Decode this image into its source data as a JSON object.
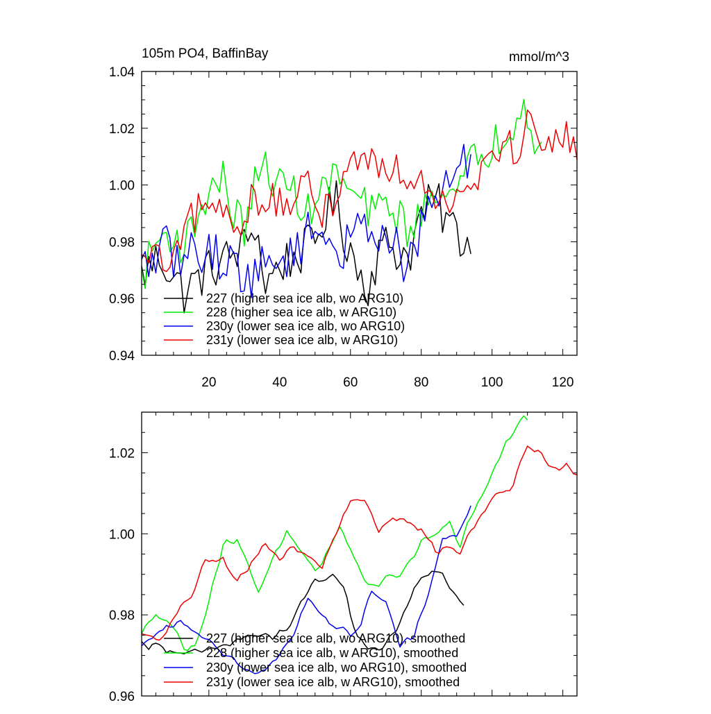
{
  "colors": {
    "s227": "#000000",
    "s228": "#00ee00",
    "s230": "#0000ee",
    "s231": "#ee0000"
  },
  "chart_data": [
    {
      "type": "line",
      "title": "105m PO4, BaffinBay",
      "units": "mmol/m^3",
      "xlim": [
        1,
        124
      ],
      "ylim": [
        0.94,
        1.04
      ],
      "x_ticks": [
        20,
        40,
        60,
        80,
        100,
        120
      ],
      "y_ticks": [
        0.94,
        0.96,
        0.98,
        1.0,
        1.02,
        1.04
      ],
      "x_tick_labels": [
        "20",
        "40",
        "60",
        "80",
        "100",
        "120"
      ],
      "y_tick_labels": [
        "0.94",
        "0.96",
        "0.98",
        "1.00",
        "1.02",
        "1.04"
      ],
      "legend": {
        "position": "lower-left"
      },
      "series": [
        {
          "name": "227 (higher sea ice alb, wo ARG10)",
          "color_key": "s227",
          "start": 1,
          "end": 94,
          "anchors": [
            [
              1,
              0.968
            ],
            [
              6,
              0.975
            ],
            [
              10,
              0.968
            ],
            [
              13,
              0.962
            ],
            [
              16,
              0.966
            ],
            [
              20,
              0.97
            ],
            [
              25,
              0.974
            ],
            [
              30,
              0.978
            ],
            [
              33,
              0.987
            ],
            [
              36,
              0.965
            ],
            [
              40,
              0.972
            ],
            [
              45,
              0.975
            ],
            [
              50,
              0.98
            ],
            [
              53,
              0.99
            ],
            [
              56,
              0.994
            ],
            [
              58,
              0.983
            ],
            [
              60,
              0.978
            ],
            [
              62,
              0.97
            ],
            [
              65,
              0.965
            ],
            [
              68,
              0.976
            ],
            [
              71,
              0.98
            ],
            [
              74,
              0.975
            ],
            [
              77,
              0.977
            ],
            [
              80,
              0.99
            ],
            [
              84,
              0.995
            ],
            [
              86,
              0.99
            ],
            [
              89,
              0.985
            ],
            [
              92,
              0.98
            ],
            [
              94,
              0.98
            ]
          ],
          "noise": 0.008
        },
        {
          "name": "228 (higher sea ice alb, w ARG10)",
          "color_key": "s228",
          "start": 1,
          "end": 114,
          "anchors": [
            [
              1,
              0.967
            ],
            [
              5,
              0.98
            ],
            [
              9,
              0.983
            ],
            [
              13,
              0.978
            ],
            [
              16,
              0.987
            ],
            [
              20,
              0.998
            ],
            [
              24,
              1.002
            ],
            [
              27,
              0.99
            ],
            [
              30,
              0.985
            ],
            [
              33,
              1.0
            ],
            [
              36,
              1.006
            ],
            [
              40,
              1.0
            ],
            [
              44,
              0.998
            ],
            [
              48,
              0.99
            ],
            [
              52,
              0.998
            ],
            [
              56,
              1.004
            ],
            [
              60,
              0.997
            ],
            [
              63,
              0.994
            ],
            [
              66,
              0.99
            ],
            [
              70,
              0.993
            ],
            [
              73,
              0.99
            ],
            [
              76,
              0.985
            ],
            [
              80,
              0.988
            ],
            [
              84,
              1.0
            ],
            [
              87,
              1.0
            ],
            [
              90,
              0.995
            ],
            [
              94,
              1.008
            ],
            [
              97,
              1.01
            ],
            [
              100,
              1.014
            ],
            [
              103,
              1.018
            ],
            [
              106,
              1.022
            ],
            [
              108,
              1.03
            ],
            [
              110,
              1.027
            ],
            [
              112,
              1.018
            ],
            [
              114,
              1.012
            ]
          ],
          "noise": 0.007
        },
        {
          "name": "230y (lower sea ice alb, wo ARG10)",
          "color_key": "s230",
          "start": 1,
          "end": 94,
          "anchors": [
            [
              1,
              0.97
            ],
            [
              5,
              0.975
            ],
            [
              8,
              0.978
            ],
            [
              12,
              0.972
            ],
            [
              16,
              0.978
            ],
            [
              20,
              0.976
            ],
            [
              24,
              0.974
            ],
            [
              28,
              0.972
            ],
            [
              31,
              0.966
            ],
            [
              34,
              0.97
            ],
            [
              38,
              0.972
            ],
            [
              42,
              0.975
            ],
            [
              46,
              0.98
            ],
            [
              50,
              0.985
            ],
            [
              54,
              0.982
            ],
            [
              57,
              0.975
            ],
            [
              60,
              0.98
            ],
            [
              63,
              0.985
            ],
            [
              67,
              0.986
            ],
            [
              70,
              0.982
            ],
            [
              73,
              0.978
            ],
            [
              76,
              0.97
            ],
            [
              79,
              0.98
            ],
            [
              82,
              0.99
            ],
            [
              85,
              0.998
            ],
            [
              88,
              1.002
            ],
            [
              91,
              1.005
            ],
            [
              94,
              1.01
            ]
          ],
          "noise": 0.008
        },
        {
          "name": "231y (lower sea ice alb, w ARG10)",
          "color_key": "s231",
          "start": 1,
          "end": 124,
          "anchors": [
            [
              1,
              0.972
            ],
            [
              5,
              0.975
            ],
            [
              9,
              0.97
            ],
            [
              13,
              0.98
            ],
            [
              16,
              0.99
            ],
            [
              20,
              0.993
            ],
            [
              24,
              0.99
            ],
            [
              28,
              0.985
            ],
            [
              32,
              0.995
            ],
            [
              36,
              0.996
            ],
            [
              40,
              0.992
            ],
            [
              44,
              0.995
            ],
            [
              48,
              0.998
            ],
            [
              52,
              0.99
            ],
            [
              56,
              0.998
            ],
            [
              60,
              1.008
            ],
            [
              64,
              1.01
            ],
            [
              68,
              1.008
            ],
            [
              72,
              1.006
            ],
            [
              76,
              1.004
            ],
            [
              80,
              1.003
            ],
            [
              84,
              0.998
            ],
            [
              88,
              0.995
            ],
            [
              92,
              1.0
            ],
            [
              96,
              1.005
            ],
            [
              100,
              1.012
            ],
            [
              104,
              1.014
            ],
            [
              107,
              1.01
            ],
            [
              110,
              1.022
            ],
            [
              113,
              1.02
            ],
            [
              116,
              1.016
            ],
            [
              119,
              1.018
            ],
            [
              122,
              1.014
            ],
            [
              124,
              1.012
            ]
          ],
          "noise": 0.007
        }
      ]
    },
    {
      "type": "line",
      "xlim": [
        1,
        124
      ],
      "ylim": [
        0.96,
        1.03
      ],
      "x_ticks": [
        20,
        40,
        60,
        80,
        100,
        120
      ],
      "y_ticks": [
        0.96,
        0.98,
        1.0,
        1.02
      ],
      "y_tick_labels": [
        "0.96",
        "0.98",
        "1.00",
        "1.02"
      ],
      "legend": {
        "position": "lower-left"
      },
      "series": [
        {
          "name": "227 (higher sea ice alb, wo ARG10), smoothed",
          "color_key": "s227",
          "start": 1,
          "end": 92,
          "anchors": [
            [
              1,
              0.973
            ],
            [
              8,
              0.972
            ],
            [
              14,
              0.97
            ],
            [
              20,
              0.971
            ],
            [
              26,
              0.973
            ],
            [
              32,
              0.975
            ],
            [
              38,
              0.974
            ],
            [
              43,
              0.978
            ],
            [
              46,
              0.982
            ],
            [
              50,
              0.988
            ],
            [
              55,
              0.99
            ],
            [
              58,
              0.987
            ],
            [
              60,
              0.98
            ],
            [
              62,
              0.975
            ],
            [
              65,
              0.972
            ],
            [
              70,
              0.972
            ],
            [
              74,
              0.978
            ],
            [
              78,
              0.987
            ],
            [
              82,
              0.99
            ],
            [
              86,
              0.99
            ],
            [
              89,
              0.986
            ],
            [
              92,
              0.982
            ]
          ],
          "noise": 0.0015
        },
        {
          "name": "228 (higher sea ice alb, w ARG10), smoothed",
          "color_key": "s228",
          "start": 1,
          "end": 110,
          "anchors": [
            [
              1,
              0.975
            ],
            [
              5,
              0.981
            ],
            [
              9,
              0.978
            ],
            [
              13,
              0.972
            ],
            [
              16,
              0.972
            ],
            [
              20,
              0.984
            ],
            [
              24,
              0.997
            ],
            [
              28,
              0.999
            ],
            [
              31,
              0.992
            ],
            [
              34,
              0.986
            ],
            [
              38,
              0.994
            ],
            [
              42,
              1.0
            ],
            [
              46,
              0.995
            ],
            [
              50,
              0.99
            ],
            [
              54,
              0.997
            ],
            [
              57,
              1.001
            ],
            [
              60,
              0.997
            ],
            [
              63,
              0.99
            ],
            [
              66,
              0.987
            ],
            [
              70,
              0.989
            ],
            [
              74,
              0.99
            ],
            [
              77,
              0.993
            ],
            [
              80,
              0.998
            ],
            [
              84,
              1.0
            ],
            [
              88,
              1.002
            ],
            [
              91,
              0.997
            ],
            [
              94,
              1.004
            ],
            [
              97,
              1.01
            ],
            [
              101,
              1.017
            ],
            [
              104,
              1.022
            ],
            [
              107,
              1.026
            ],
            [
              109,
              1.029
            ],
            [
              110,
              1.028
            ]
          ],
          "noise": 0.0012
        },
        {
          "name": "230y (lower sea ice alb, wo ARG10), smoothed",
          "color_key": "s230",
          "start": 1,
          "end": 94,
          "anchors": [
            [
              1,
              0.972
            ],
            [
              6,
              0.976
            ],
            [
              12,
              0.978
            ],
            [
              18,
              0.975
            ],
            [
              24,
              0.971
            ],
            [
              28,
              0.968
            ],
            [
              32,
              0.966
            ],
            [
              36,
              0.967
            ],
            [
              40,
              0.97
            ],
            [
              44,
              0.976
            ],
            [
              48,
              0.984
            ],
            [
              52,
              0.98
            ],
            [
              56,
              0.977
            ],
            [
              60,
              0.975
            ],
            [
              63,
              0.978
            ],
            [
              66,
              0.986
            ],
            [
              70,
              0.983
            ],
            [
              74,
              0.973
            ],
            [
              78,
              0.975
            ],
            [
              82,
              0.985
            ],
            [
              86,
              0.998
            ],
            [
              90,
              1.0
            ],
            [
              94,
              1.007
            ]
          ],
          "noise": 0.0012
        },
        {
          "name": "231y (lower sea ice alb, w ARG10), smoothed",
          "color_key": "s231",
          "start": 1,
          "end": 124,
          "anchors": [
            [
              1,
              0.975
            ],
            [
              6,
              0.974
            ],
            [
              11,
              0.98
            ],
            [
              15,
              0.985
            ],
            [
              19,
              0.993
            ],
            [
              24,
              0.994
            ],
            [
              28,
              0.988
            ],
            [
              32,
              0.993
            ],
            [
              36,
              0.997
            ],
            [
              40,
              0.994
            ],
            [
              44,
              0.997
            ],
            [
              48,
              0.994
            ],
            [
              52,
              0.992
            ],
            [
              56,
              1.0
            ],
            [
              60,
              1.009
            ],
            [
              64,
              1.008
            ],
            [
              68,
              1.001
            ],
            [
              72,
              1.004
            ],
            [
              76,
              1.004
            ],
            [
              80,
              1.001
            ],
            [
              84,
              0.996
            ],
            [
              88,
              0.997
            ],
            [
              91,
              0.996
            ],
            [
              94,
              1.001
            ],
            [
              98,
              1.006
            ],
            [
              102,
              1.01
            ],
            [
              106,
              1.012
            ],
            [
              110,
              1.022
            ],
            [
              113,
              1.02
            ],
            [
              117,
              1.016
            ],
            [
              121,
              1.017
            ],
            [
              124,
              1.014
            ]
          ],
          "noise": 0.0012
        }
      ]
    }
  ]
}
